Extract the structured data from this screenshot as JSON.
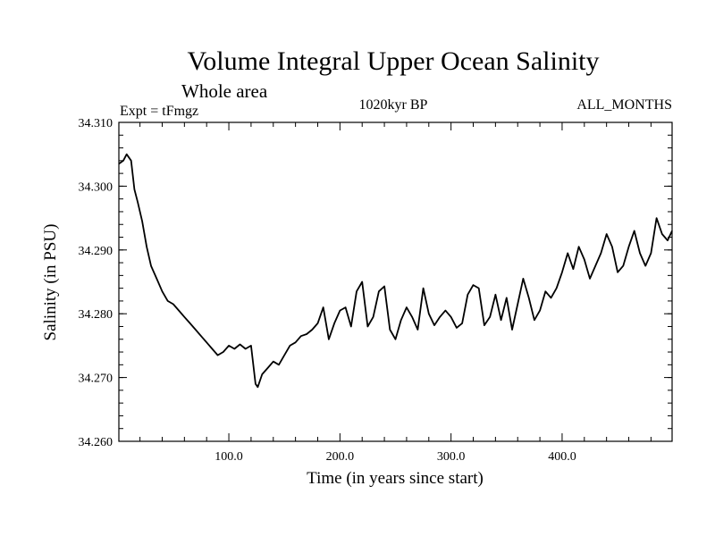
{
  "chart_data": {
    "type": "line",
    "title": "Volume Integral Upper Ocean Salinity",
    "subtitle": "Whole area",
    "left_label": "Expt = tFmgz",
    "center_label": "1020kyr BP",
    "right_label": "ALL_MONTHS",
    "xlabel": "Time (in years since start)",
    "ylabel": "Salinity (in PSU)",
    "xlim": [
      1,
      499
    ],
    "ylim": [
      34.26,
      34.31
    ],
    "xticks": [
      100,
      200,
      300,
      400
    ],
    "xtick_labels": [
      "100.0",
      "200.0",
      "300.0",
      "400.0"
    ],
    "yticks": [
      34.26,
      34.27,
      34.28,
      34.29,
      34.3,
      34.31
    ],
    "ytick_labels": [
      "34.260",
      "34.270",
      "34.280",
      "34.290",
      "34.300",
      "34.310"
    ],
    "series": [
      {
        "name": "Salinity",
        "x": [
          1,
          5,
          8,
          12,
          15,
          18,
          22,
          26,
          30,
          35,
          40,
          45,
          50,
          55,
          60,
          65,
          70,
          75,
          80,
          85,
          90,
          95,
          100,
          105,
          110,
          115,
          120,
          124,
          126,
          130,
          135,
          140,
          145,
          150,
          155,
          160,
          165,
          170,
          175,
          180,
          185,
          190,
          195,
          200,
          205,
          210,
          215,
          220,
          225,
          230,
          235,
          240,
          245,
          250,
          255,
          260,
          265,
          270,
          275,
          280,
          285,
          290,
          295,
          300,
          305,
          310,
          315,
          320,
          325,
          330,
          335,
          340,
          345,
          350,
          355,
          360,
          365,
          370,
          375,
          380,
          385,
          390,
          395,
          400,
          405,
          410,
          415,
          420,
          425,
          430,
          435,
          440,
          445,
          450,
          455,
          460,
          465,
          470,
          475,
          480,
          485,
          490,
          495,
          499
        ],
        "values": [
          34.3035,
          34.304,
          34.305,
          34.304,
          34.2995,
          34.2975,
          34.2945,
          34.2905,
          34.2875,
          34.2855,
          34.2835,
          34.282,
          34.2815,
          34.2805,
          34.2795,
          34.2785,
          34.2775,
          34.2765,
          34.2755,
          34.2745,
          34.2735,
          34.274,
          34.275,
          34.2745,
          34.2752,
          34.2745,
          34.275,
          34.269,
          34.2685,
          34.2705,
          34.2715,
          34.2725,
          34.272,
          34.2735,
          34.275,
          34.2755,
          34.2765,
          34.2768,
          34.2775,
          34.2785,
          34.281,
          34.276,
          34.2785,
          34.2805,
          34.281,
          34.278,
          34.2835,
          34.285,
          34.278,
          34.2795,
          34.2835,
          34.2843,
          34.2775,
          34.276,
          34.279,
          34.281,
          34.2795,
          34.2775,
          34.284,
          34.28,
          34.2782,
          34.2795,
          34.2805,
          34.2795,
          34.2778,
          34.2785,
          34.283,
          34.2845,
          34.284,
          34.2782,
          34.2795,
          34.283,
          34.279,
          34.2825,
          34.2775,
          34.2815,
          34.2855,
          34.2825,
          34.279,
          34.2805,
          34.2835,
          34.2825,
          34.284,
          34.2865,
          34.2895,
          34.287,
          34.2905,
          34.2885,
          34.2855,
          34.2875,
          34.2895,
          34.2925,
          34.2905,
          34.2865,
          34.2875,
          34.2905,
          34.293,
          34.2895,
          34.2875,
          34.2895,
          34.295,
          34.2925,
          34.2915,
          34.293
        ]
      }
    ]
  }
}
